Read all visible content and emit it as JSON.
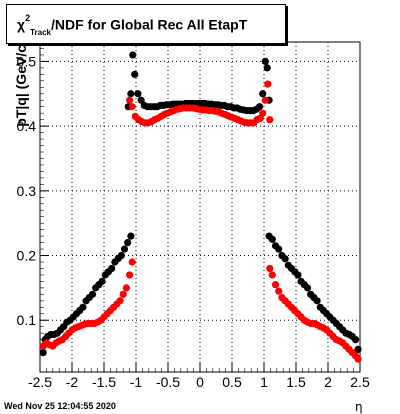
{
  "chart_data": {
    "type": "scatter",
    "title_prefix": "χ",
    "title_sup": "2",
    "title_sub": "Track",
    "title_suffix": "/NDF for Global Rec All EtapT",
    "xlabel": "η",
    "ylabel": "p_{T}|q| (GeV/c",
    "xlim": [
      -2.5,
      2.5
    ],
    "ylim": [
      0.02,
      0.53
    ],
    "x_ticks": [
      -2.5,
      -2,
      -1.5,
      -1,
      -0.5,
      0,
      0.5,
      1,
      1.5,
      2,
      2.5
    ],
    "x_tick_labels": [
      "-2.5",
      "-2",
      "-1.5",
      "-1",
      "-0.5",
      "0",
      "0.5",
      "1",
      "1.5",
      "2",
      "2.5"
    ],
    "y_ticks": [
      0.1,
      0.2,
      0.3,
      0.4,
      0.5
    ],
    "y_tick_labels": [
      "0.1",
      "0.2",
      "0.3",
      "0.4",
      "0.5"
    ],
    "grid": true,
    "series": [
      {
        "color": "#000000",
        "points": [
          [
            -2.45,
            0.05
          ],
          [
            -2.42,
            0.07
          ],
          [
            -2.38,
            0.075
          ],
          [
            -2.33,
            0.078
          ],
          [
            -2.28,
            0.078
          ],
          [
            -2.23,
            0.08
          ],
          [
            -2.18,
            0.085
          ],
          [
            -2.13,
            0.09
          ],
          [
            -2.08,
            0.097
          ],
          [
            -2.03,
            0.1
          ],
          [
            -1.98,
            0.105
          ],
          [
            -1.93,
            0.11
          ],
          [
            -1.88,
            0.115
          ],
          [
            -1.83,
            0.12
          ],
          [
            -1.78,
            0.13
          ],
          [
            -1.73,
            0.135
          ],
          [
            -1.68,
            0.14
          ],
          [
            -1.63,
            0.15
          ],
          [
            -1.58,
            0.155
          ],
          [
            -1.53,
            0.16
          ],
          [
            -1.48,
            0.17
          ],
          [
            -1.43,
            0.175
          ],
          [
            -1.38,
            0.18
          ],
          [
            -1.33,
            0.19
          ],
          [
            -1.28,
            0.195
          ],
          [
            -1.23,
            0.2
          ],
          [
            -1.18,
            0.21
          ],
          [
            -1.13,
            0.22
          ],
          [
            -1.08,
            0.23
          ],
          [
            -1.12,
            0.43
          ],
          [
            -1.08,
            0.45
          ],
          [
            -1.05,
            0.51
          ],
          [
            -1.02,
            0.48
          ],
          [
            -0.97,
            0.45
          ],
          [
            -0.92,
            0.44
          ],
          [
            -0.87,
            0.432
          ],
          [
            -0.82,
            0.43
          ],
          [
            -0.77,
            0.43
          ],
          [
            -0.72,
            0.43
          ],
          [
            -0.67,
            0.43
          ],
          [
            -0.62,
            0.432
          ],
          [
            -0.57,
            0.432
          ],
          [
            -0.52,
            0.433
          ],
          [
            -0.47,
            0.433
          ],
          [
            -0.42,
            0.434
          ],
          [
            -0.37,
            0.434
          ],
          [
            -0.32,
            0.434
          ],
          [
            -0.27,
            0.434
          ],
          [
            -0.22,
            0.435
          ],
          [
            -0.17,
            0.435
          ],
          [
            -0.12,
            0.435
          ],
          [
            -0.07,
            0.435
          ],
          [
            -0.02,
            0.435
          ],
          [
            0.03,
            0.435
          ],
          [
            0.08,
            0.435
          ],
          [
            0.13,
            0.434
          ],
          [
            0.18,
            0.434
          ],
          [
            0.23,
            0.433
          ],
          [
            0.28,
            0.433
          ],
          [
            0.33,
            0.432
          ],
          [
            0.38,
            0.432
          ],
          [
            0.43,
            0.43
          ],
          [
            0.48,
            0.43
          ],
          [
            0.53,
            0.428
          ],
          [
            0.58,
            0.428
          ],
          [
            0.63,
            0.426
          ],
          [
            0.68,
            0.425
          ],
          [
            0.73,
            0.424
          ],
          [
            0.78,
            0.424
          ],
          [
            0.83,
            0.424
          ],
          [
            0.88,
            0.426
          ],
          [
            0.93,
            0.43
          ],
          [
            0.98,
            0.45
          ],
          [
            1.02,
            0.5
          ],
          [
            1.05,
            0.49
          ],
          [
            1.08,
            0.44
          ],
          [
            1.08,
            0.23
          ],
          [
            1.13,
            0.225
          ],
          [
            1.18,
            0.215
          ],
          [
            1.23,
            0.21
          ],
          [
            1.28,
            0.2
          ],
          [
            1.33,
            0.195
          ],
          [
            1.38,
            0.185
          ],
          [
            1.43,
            0.18
          ],
          [
            1.48,
            0.175
          ],
          [
            1.53,
            0.17
          ],
          [
            1.58,
            0.16
          ],
          [
            1.63,
            0.155
          ],
          [
            1.68,
            0.15
          ],
          [
            1.73,
            0.14
          ],
          [
            1.78,
            0.135
          ],
          [
            1.83,
            0.13
          ],
          [
            1.88,
            0.12
          ],
          [
            1.93,
            0.115
          ],
          [
            1.98,
            0.11
          ],
          [
            2.03,
            0.105
          ],
          [
            2.08,
            0.1
          ],
          [
            2.13,
            0.095
          ],
          [
            2.18,
            0.09
          ],
          [
            2.23,
            0.085
          ],
          [
            2.28,
            0.08
          ],
          [
            2.33,
            0.078
          ],
          [
            2.38,
            0.075
          ],
          [
            2.43,
            0.07
          ],
          [
            2.47,
            0.055
          ]
        ]
      },
      {
        "color": "#ff0000",
        "points": [
          [
            -2.45,
            0.06
          ],
          [
            -2.4,
            0.065
          ],
          [
            -2.35,
            0.062
          ],
          [
            -2.3,
            0.06
          ],
          [
            -2.25,
            0.065
          ],
          [
            -2.2,
            0.068
          ],
          [
            -2.15,
            0.07
          ],
          [
            -2.1,
            0.075
          ],
          [
            -2.05,
            0.08
          ],
          [
            -2.0,
            0.085
          ],
          [
            -1.95,
            0.088
          ],
          [
            -1.9,
            0.09
          ],
          [
            -1.85,
            0.092
          ],
          [
            -1.8,
            0.094
          ],
          [
            -1.75,
            0.095
          ],
          [
            -1.7,
            0.095
          ],
          [
            -1.65,
            0.095
          ],
          [
            -1.6,
            0.097
          ],
          [
            -1.55,
            0.1
          ],
          [
            -1.5,
            0.105
          ],
          [
            -1.45,
            0.11
          ],
          [
            -1.4,
            0.115
          ],
          [
            -1.35,
            0.12
          ],
          [
            -1.3,
            0.125
          ],
          [
            -1.25,
            0.13
          ],
          [
            -1.2,
            0.14
          ],
          [
            -1.15,
            0.15
          ],
          [
            -1.1,
            0.17
          ],
          [
            -1.06,
            0.19
          ],
          [
            -1.1,
            0.44
          ],
          [
            -1.06,
            0.43
          ],
          [
            -1.01,
            0.415
          ],
          [
            -0.96,
            0.41
          ],
          [
            -0.91,
            0.407
          ],
          [
            -0.86,
            0.405
          ],
          [
            -0.81,
            0.405
          ],
          [
            -0.76,
            0.407
          ],
          [
            -0.71,
            0.41
          ],
          [
            -0.66,
            0.412
          ],
          [
            -0.61,
            0.415
          ],
          [
            -0.56,
            0.418
          ],
          [
            -0.51,
            0.42
          ],
          [
            -0.46,
            0.422
          ],
          [
            -0.41,
            0.424
          ],
          [
            -0.36,
            0.426
          ],
          [
            -0.31,
            0.427
          ],
          [
            -0.26,
            0.428
          ],
          [
            -0.21,
            0.428
          ],
          [
            -0.16,
            0.428
          ],
          [
            -0.11,
            0.428
          ],
          [
            -0.06,
            0.427
          ],
          [
            -0.01,
            0.426
          ],
          [
            0.04,
            0.425
          ],
          [
            0.09,
            0.425
          ],
          [
            0.14,
            0.424
          ],
          [
            0.19,
            0.424
          ],
          [
            0.24,
            0.423
          ],
          [
            0.29,
            0.422
          ],
          [
            0.34,
            0.42
          ],
          [
            0.39,
            0.418
          ],
          [
            0.44,
            0.416
          ],
          [
            0.49,
            0.414
          ],
          [
            0.54,
            0.412
          ],
          [
            0.59,
            0.41
          ],
          [
            0.64,
            0.408
          ],
          [
            0.69,
            0.406
          ],
          [
            0.74,
            0.405
          ],
          [
            0.79,
            0.405
          ],
          [
            0.84,
            0.405
          ],
          [
            0.89,
            0.41
          ],
          [
            0.94,
            0.412
          ],
          [
            0.98,
            0.42
          ],
          [
            1.02,
            0.44
          ],
          [
            1.06,
            0.465
          ],
          [
            1.09,
            0.41
          ],
          [
            1.09,
            0.18
          ],
          [
            1.13,
            0.17
          ],
          [
            1.18,
            0.155
          ],
          [
            1.23,
            0.145
          ],
          [
            1.28,
            0.135
          ],
          [
            1.33,
            0.13
          ],
          [
            1.38,
            0.125
          ],
          [
            1.43,
            0.12
          ],
          [
            1.48,
            0.115
          ],
          [
            1.53,
            0.11
          ],
          [
            1.58,
            0.105
          ],
          [
            1.63,
            0.1
          ],
          [
            1.68,
            0.097
          ],
          [
            1.73,
            0.095
          ],
          [
            1.78,
            0.095
          ],
          [
            1.83,
            0.093
          ],
          [
            1.88,
            0.09
          ],
          [
            1.93,
            0.088
          ],
          [
            1.98,
            0.085
          ],
          [
            2.03,
            0.08
          ],
          [
            2.08,
            0.075
          ],
          [
            2.13,
            0.07
          ],
          [
            2.18,
            0.068
          ],
          [
            2.23,
            0.065
          ],
          [
            2.28,
            0.06
          ],
          [
            2.33,
            0.055
          ],
          [
            2.38,
            0.05
          ],
          [
            2.43,
            0.045
          ],
          [
            2.47,
            0.04
          ]
        ]
      }
    ]
  },
  "footer": {
    "timestamp": "Wed Nov 25 12:04:55 2020"
  }
}
